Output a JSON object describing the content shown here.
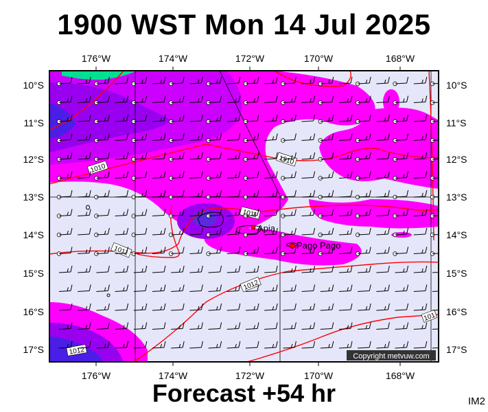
{
  "title": "1900 WST Mon 14 Jul 2025",
  "footer": "Forecast +54 hr",
  "model_tag": "IM2",
  "copyright": "Copyright metvuw.com",
  "axes": {
    "lon_labels": [
      "176°W",
      "174°W",
      "172°W",
      "170°W",
      "168°W"
    ],
    "lat_labels": [
      "10°S",
      "11°S",
      "12°S",
      "13°S",
      "14°S",
      "15°S",
      "16°S",
      "17°S"
    ]
  },
  "places": [
    {
      "name": "Apia",
      "lon": -171.77,
      "lat": -13.83
    },
    {
      "name": "Pago Pago",
      "lon": -170.7,
      "lat": -14.28
    }
  ],
  "isobar_labels": [
    "1010",
    "1010",
    "1011",
    "1011",
    "1012",
    "1012",
    "101"
  ],
  "colors": {
    "background": "#e6e6fa",
    "precip_light": "#ff00ff",
    "precip_medium": "#9a00f0",
    "precip_heavy": "#4a1ee6",
    "precip_extreme": "#00e090",
    "isobar": "#ff0000"
  }
}
